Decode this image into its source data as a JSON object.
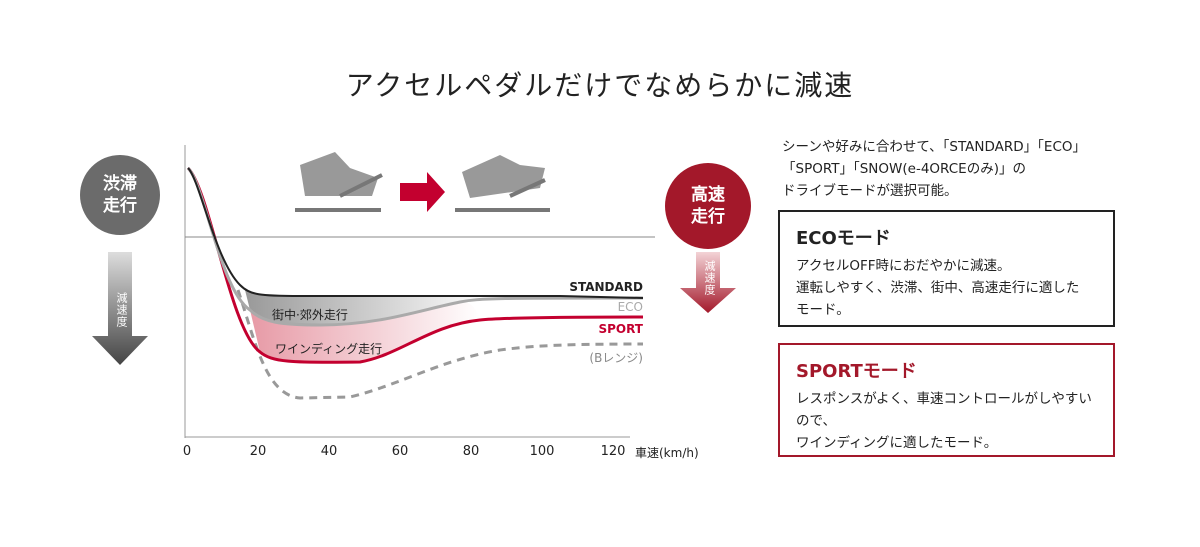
{
  "title": "アクセルペダルだけでなめらかに減速",
  "left_badge": {
    "lines": [
      "渋滞",
      "走行"
    ],
    "arrow_label": "減速度"
  },
  "right_badge": {
    "lines": [
      "高速",
      "走行"
    ],
    "arrow_label": "減速度"
  },
  "chart": {
    "x_ticks": [
      0,
      20,
      40,
      60,
      80,
      100,
      120
    ],
    "x_axis_label": "車速(km/h)",
    "curve_labels": [
      "STANDARD",
      "ECO",
      "SPORT",
      "(Bレンジ)"
    ],
    "zone_labels": [
      "街中·郊外走行",
      "ワインディング走行"
    ]
  },
  "intro": [
    "シーンや好みに合わせて、「STANDARD」「ECO」",
    "「SPORT」「SNOW(e-4ORCEのみ)」の",
    "ドライブモードが選択可能。"
  ],
  "eco_box": {
    "title": "ECOモード",
    "lines": [
      "アクセルOFF時におだやかに減速。",
      "運転しやすく、渋滞、街中、高速走行に適した",
      "モード。"
    ]
  },
  "sport_box": {
    "title": "SPORTモード",
    "lines": [
      "レスポンスがよく、車速コントロールがしやすいので、",
      "ワインディングに適したモード。"
    ]
  }
}
